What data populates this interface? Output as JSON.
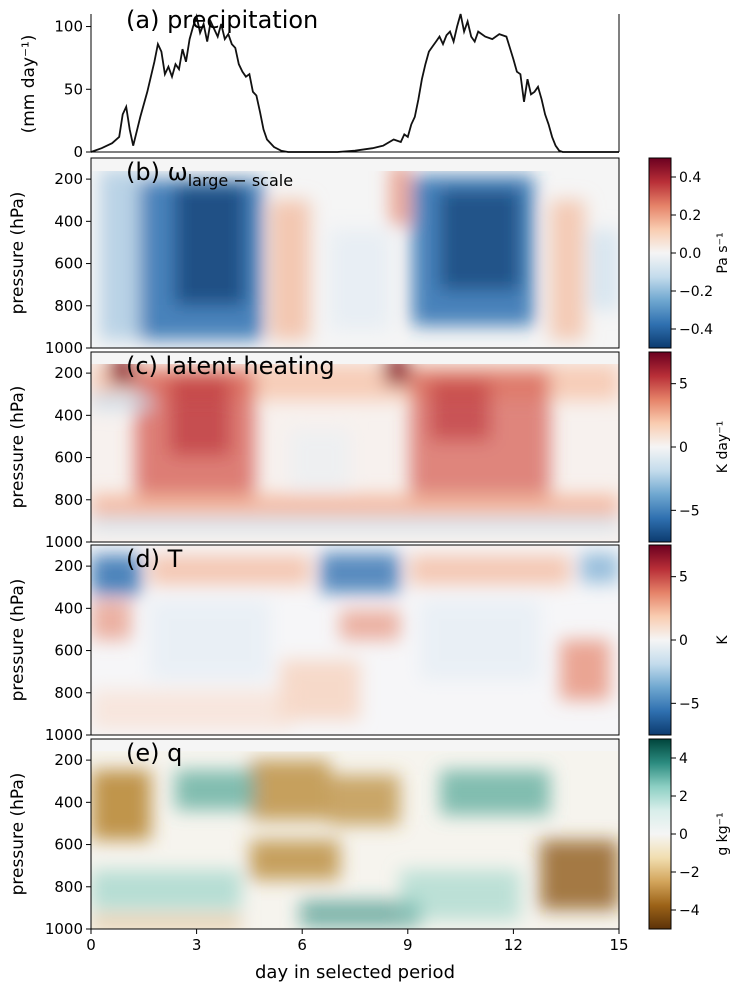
{
  "figure": {
    "xlabel": "day in selected period"
  },
  "chart_data": [
    {
      "type": "line",
      "panel": "a",
      "title": "(a) precipitation",
      "ylabel": "(mm day⁻¹)",
      "xlim": [
        0,
        15
      ],
      "ylim": [
        0,
        110
      ],
      "yticks": [
        0,
        50,
        100
      ],
      "series": [
        {
          "name": "precipitation",
          "x": [
            0,
            0.3,
            0.6,
            0.8,
            0.9,
            1.0,
            1.1,
            1.2,
            1.4,
            1.6,
            1.8,
            1.9,
            2.0,
            2.1,
            2.2,
            2.3,
            2.4,
            2.5,
            2.6,
            2.7,
            2.8,
            2.9,
            3.0,
            3.1,
            3.2,
            3.3,
            3.4,
            3.5,
            3.6,
            3.7,
            3.8,
            3.9,
            4.0,
            4.1,
            4.2,
            4.3,
            4.4,
            4.5,
            4.6,
            4.7,
            4.8,
            4.9,
            5.0,
            5.2,
            5.4,
            5.6,
            5.8,
            6.0,
            6.5,
            7.0,
            7.5,
            8.0,
            8.3,
            8.6,
            8.8,
            8.9,
            9.0,
            9.1,
            9.2,
            9.3,
            9.4,
            9.5,
            9.6,
            9.7,
            9.8,
            9.9,
            10.0,
            10.1,
            10.2,
            10.3,
            10.4,
            10.5,
            10.6,
            10.7,
            10.8,
            10.9,
            11.0,
            11.2,
            11.4,
            11.6,
            11.8,
            12.0,
            12.1,
            12.2,
            12.3,
            12.4,
            12.5,
            12.6,
            12.7,
            12.8,
            12.9,
            13.0,
            13.1,
            13.2,
            13.3,
            13.4,
            13.5,
            14.0,
            15.0
          ],
          "values": [
            0,
            3,
            7,
            12,
            30,
            36,
            18,
            5,
            28,
            48,
            72,
            86,
            80,
            62,
            68,
            60,
            70,
            66,
            82,
            72,
            90,
            100,
            108,
            95,
            102,
            88,
            104,
            98,
            92,
            102,
            90,
            94,
            86,
            83,
            70,
            64,
            60,
            62,
            48,
            45,
            32,
            18,
            10,
            4,
            1,
            0,
            0,
            0,
            0,
            0,
            1,
            3,
            5,
            10,
            8,
            14,
            12,
            22,
            28,
            42,
            58,
            70,
            80,
            84,
            88,
            92,
            86,
            93,
            96,
            88,
            100,
            110,
            96,
            104,
            92,
            88,
            96,
            92,
            90,
            94,
            92,
            74,
            64,
            62,
            40,
            58,
            46,
            48,
            52,
            42,
            30,
            22,
            12,
            5,
            1,
            0,
            0,
            0,
            0
          ]
        }
      ]
    },
    {
      "type": "heatmap",
      "panel": "b",
      "title_main": "(b) ω",
      "title_sub": "large − scale",
      "ylabel": "pressure (hPa)",
      "y_range": [
        1000,
        100
      ],
      "yticks": [
        200,
        400,
        600,
        800,
        1000
      ],
      "colorbar_label": "Pa s⁻¹",
      "colorbar_ticks": [
        "0.4",
        "0.2",
        "0.0",
        "−0.2",
        "−0.4"
      ],
      "colorbar_range": [
        -0.5,
        0.5
      ],
      "colormap": "diverging",
      "gradient_stops": [
        "#6b0020",
        "#b82e37",
        "#e58268",
        "#f9ccb0",
        "#f5f5f5",
        "#c4dcec",
        "#6fa7d0",
        "#2f70b0",
        "#0c3b6f"
      ],
      "description": "strong ascent (negative) during rainy days 1.5–5 and 9–12.5; weak descent elsewhere"
    },
    {
      "type": "heatmap",
      "panel": "c",
      "title": "(c) latent heating",
      "ylabel": "pressure (hPa)",
      "y_range": [
        1000,
        100
      ],
      "yticks": [
        200,
        400,
        600,
        800,
        1000
      ],
      "colorbar_label": "K day⁻¹",
      "colorbar_ticks": [
        "5",
        "0",
        "−5"
      ],
      "colorbar_range": [
        -7.5,
        7.5
      ],
      "colormap": "diverging",
      "gradient_stops": [
        "#6b0020",
        "#b82e37",
        "#e58268",
        "#f9ccb0",
        "#f5f5f5",
        "#c4dcec",
        "#6fa7d0",
        "#2f70b0",
        "#0c3b6f"
      ]
    },
    {
      "type": "heatmap",
      "panel": "d",
      "title": "(d) T",
      "ylabel": "pressure (hPa)",
      "y_range": [
        1000,
        100
      ],
      "yticks": [
        200,
        400,
        600,
        800,
        1000
      ],
      "colorbar_label": "K",
      "colorbar_ticks": [
        "5",
        "0",
        "−5"
      ],
      "colorbar_range": [
        -7.5,
        7.5
      ],
      "colormap": "diverging",
      "gradient_stops": [
        "#6b0020",
        "#b82e37",
        "#e58268",
        "#f9ccb0",
        "#f5f5f5",
        "#c4dcec",
        "#6fa7d0",
        "#2f70b0",
        "#0c3b6f"
      ]
    },
    {
      "type": "heatmap",
      "panel": "e",
      "title": "(e) q",
      "ylabel": "pressure (hPa)",
      "y_range": [
        1000,
        100
      ],
      "yticks": [
        200,
        400,
        600,
        800,
        1000
      ],
      "xticks": [
        0,
        3,
        6,
        9,
        12,
        15
      ],
      "colorbar_label": "g kg⁻¹",
      "colorbar_ticks": [
        "4",
        "2",
        "0",
        "−2",
        "−4"
      ],
      "colorbar_range": [
        -5,
        5
      ],
      "colormap": "brown-teal",
      "gradient_stops": [
        "#00453c",
        "#2b8b7f",
        "#8ccfc3",
        "#d8eeea",
        "#f5f5f5",
        "#f1deb0",
        "#d3a55c",
        "#9c6318",
        "#5c3208"
      ]
    }
  ]
}
